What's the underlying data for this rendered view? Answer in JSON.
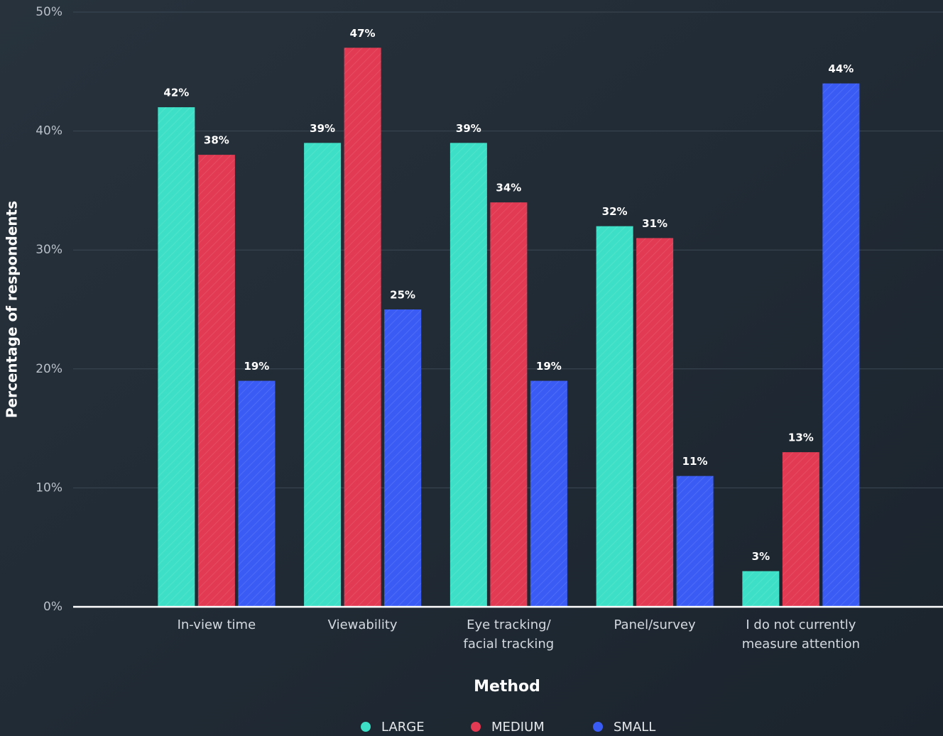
{
  "chart_data": {
    "type": "bar",
    "categories": [
      "In-view time",
      "Viewability",
      "Eye tracking/\nfacial tracking",
      "Panel/survey",
      "I do not currently\nmeasure attention"
    ],
    "series": [
      {
        "name": "LARGE",
        "color": "#3de0c6",
        "values": [
          42,
          39,
          39,
          32,
          3
        ],
        "value_labels": [
          "42%",
          "39%",
          "39%",
          "32%",
          "3%"
        ]
      },
      {
        "name": "MEDIUM",
        "color": "#e23a52",
        "values": [
          38,
          47,
          34,
          31,
          13
        ],
        "value_labels": [
          "38%",
          "47%",
          "34%",
          "31%",
          "13%"
        ]
      },
      {
        "name": "SMALL",
        "color": "#3a5cf5",
        "values": [
          19,
          25,
          19,
          11,
          44
        ],
        "value_labels": [
          "19%",
          "25%",
          "19%",
          "11%",
          "44%"
        ]
      }
    ],
    "xlabel": "Method",
    "ylabel": "Percentage of respondents",
    "ylim": [
      0,
      50
    ],
    "yticks": [
      {
        "value": 0,
        "label": "0%"
      },
      {
        "value": 10,
        "label": "10%"
      },
      {
        "value": 20,
        "label": "20%"
      },
      {
        "value": 30,
        "label": "30%"
      },
      {
        "value": 40,
        "label": "40%"
      },
      {
        "value": 50,
        "label": "50%"
      }
    ],
    "grid": true,
    "legend": "bottom"
  }
}
